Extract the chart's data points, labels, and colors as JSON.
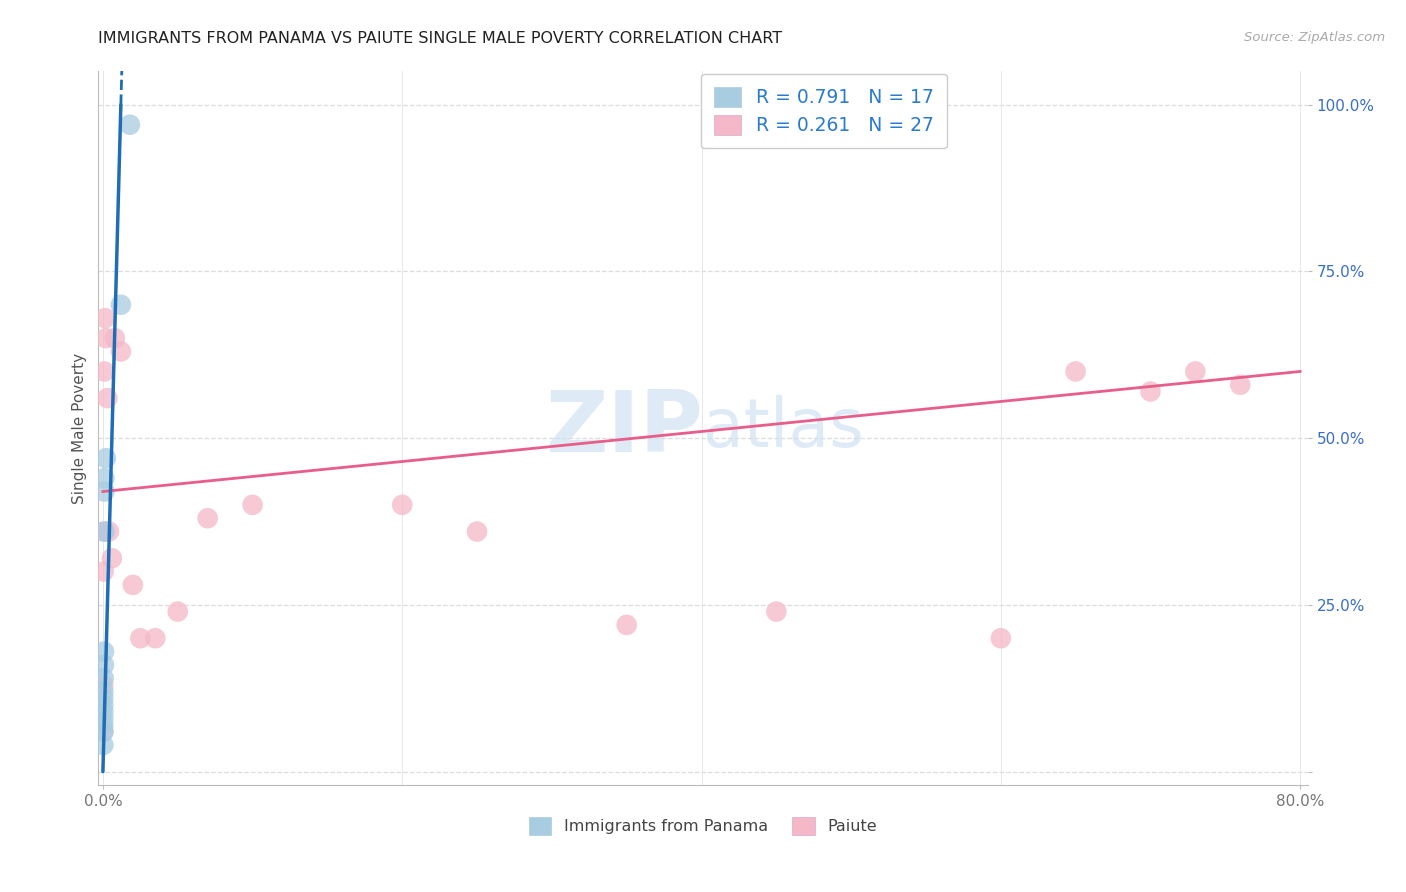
{
  "title": "IMMIGRANTS FROM PANAMA VS PAIUTE SINGLE MALE POVERTY CORRELATION CHART",
  "source": "Source: ZipAtlas.com",
  "ylabel": "Single Male Poverty",
  "xlim_min": -0.003,
  "xlim_max": 0.805,
  "ylim_min": -0.02,
  "ylim_max": 1.05,
  "legend1_label": "R = 0.791   N = 17",
  "legend2_label": "R = 0.261   N = 27",
  "bottom_legend1": "Immigrants from Panama",
  "bottom_legend2": "Paiute",
  "blue_scatter_color": "#a8cce0",
  "pink_scatter_color": "#f4b8c8",
  "blue_line_color": "#1e6db5",
  "pink_line_color": "#e85d8a",
  "legend_text_color": "#2b7bcc",
  "title_color": "#222222",
  "ytick_color": "#3a6fc4",
  "watermark_color": "#c8dff0",
  "panama_x": [
    0.0003,
    0.0003,
    0.0003,
    0.0003,
    0.0003,
    0.0003,
    0.0003,
    0.0003,
    0.0005,
    0.0007,
    0.0007,
    0.001,
    0.001,
    0.001,
    0.002,
    0.012,
    0.018
  ],
  "panama_y": [
    0.04,
    0.06,
    0.07,
    0.08,
    0.09,
    0.1,
    0.11,
    0.12,
    0.14,
    0.16,
    0.18,
    0.36,
    0.42,
    0.44,
    0.47,
    0.7,
    0.97
  ],
  "paiute_x": [
    0.0003,
    0.0003,
    0.0005,
    0.0008,
    0.001,
    0.0015,
    0.002,
    0.003,
    0.004,
    0.006,
    0.008,
    0.012,
    0.02,
    0.025,
    0.035,
    0.05,
    0.07,
    0.1,
    0.2,
    0.25,
    0.35,
    0.45,
    0.6,
    0.65,
    0.7,
    0.73,
    0.76
  ],
  "paiute_y": [
    0.06,
    0.13,
    0.3,
    0.36,
    0.6,
    0.68,
    0.65,
    0.56,
    0.36,
    0.32,
    0.65,
    0.63,
    0.28,
    0.2,
    0.2,
    0.24,
    0.38,
    0.4,
    0.4,
    0.36,
    0.22,
    0.24,
    0.2,
    0.6,
    0.57,
    0.6,
    0.58
  ],
  "ytick_positions": [
    0.0,
    0.25,
    0.5,
    0.75,
    1.0
  ],
  "ytick_labels": [
    "",
    "25.0%",
    "50.0%",
    "75.0%",
    "100.0%"
  ],
  "xtick_positions": [
    0.0,
    0.8
  ],
  "xtick_labels": [
    "0.0%",
    "80.0%"
  ],
  "pink_line_x0": 0.0,
  "pink_line_y0": 0.42,
  "pink_line_x1": 0.8,
  "pink_line_y1": 0.6
}
